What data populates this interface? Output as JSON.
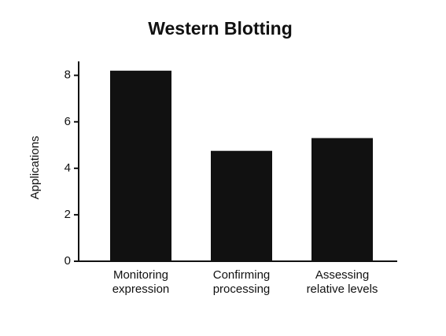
{
  "chart_data": {
    "type": "bar",
    "title": "Western Blotting",
    "y_label": "Applications",
    "categories": [
      [
        "Monitoring",
        "expression"
      ],
      [
        "Confirming",
        "processing"
      ],
      [
        "Assessing",
        "relative levels"
      ]
    ],
    "values": [
      8.2,
      4.75,
      5.3
    ],
    "color": "#111111",
    "ylim": [
      0,
      8.6
    ],
    "yticks": [
      0,
      2,
      4,
      6,
      8
    ],
    "grid": false
  }
}
